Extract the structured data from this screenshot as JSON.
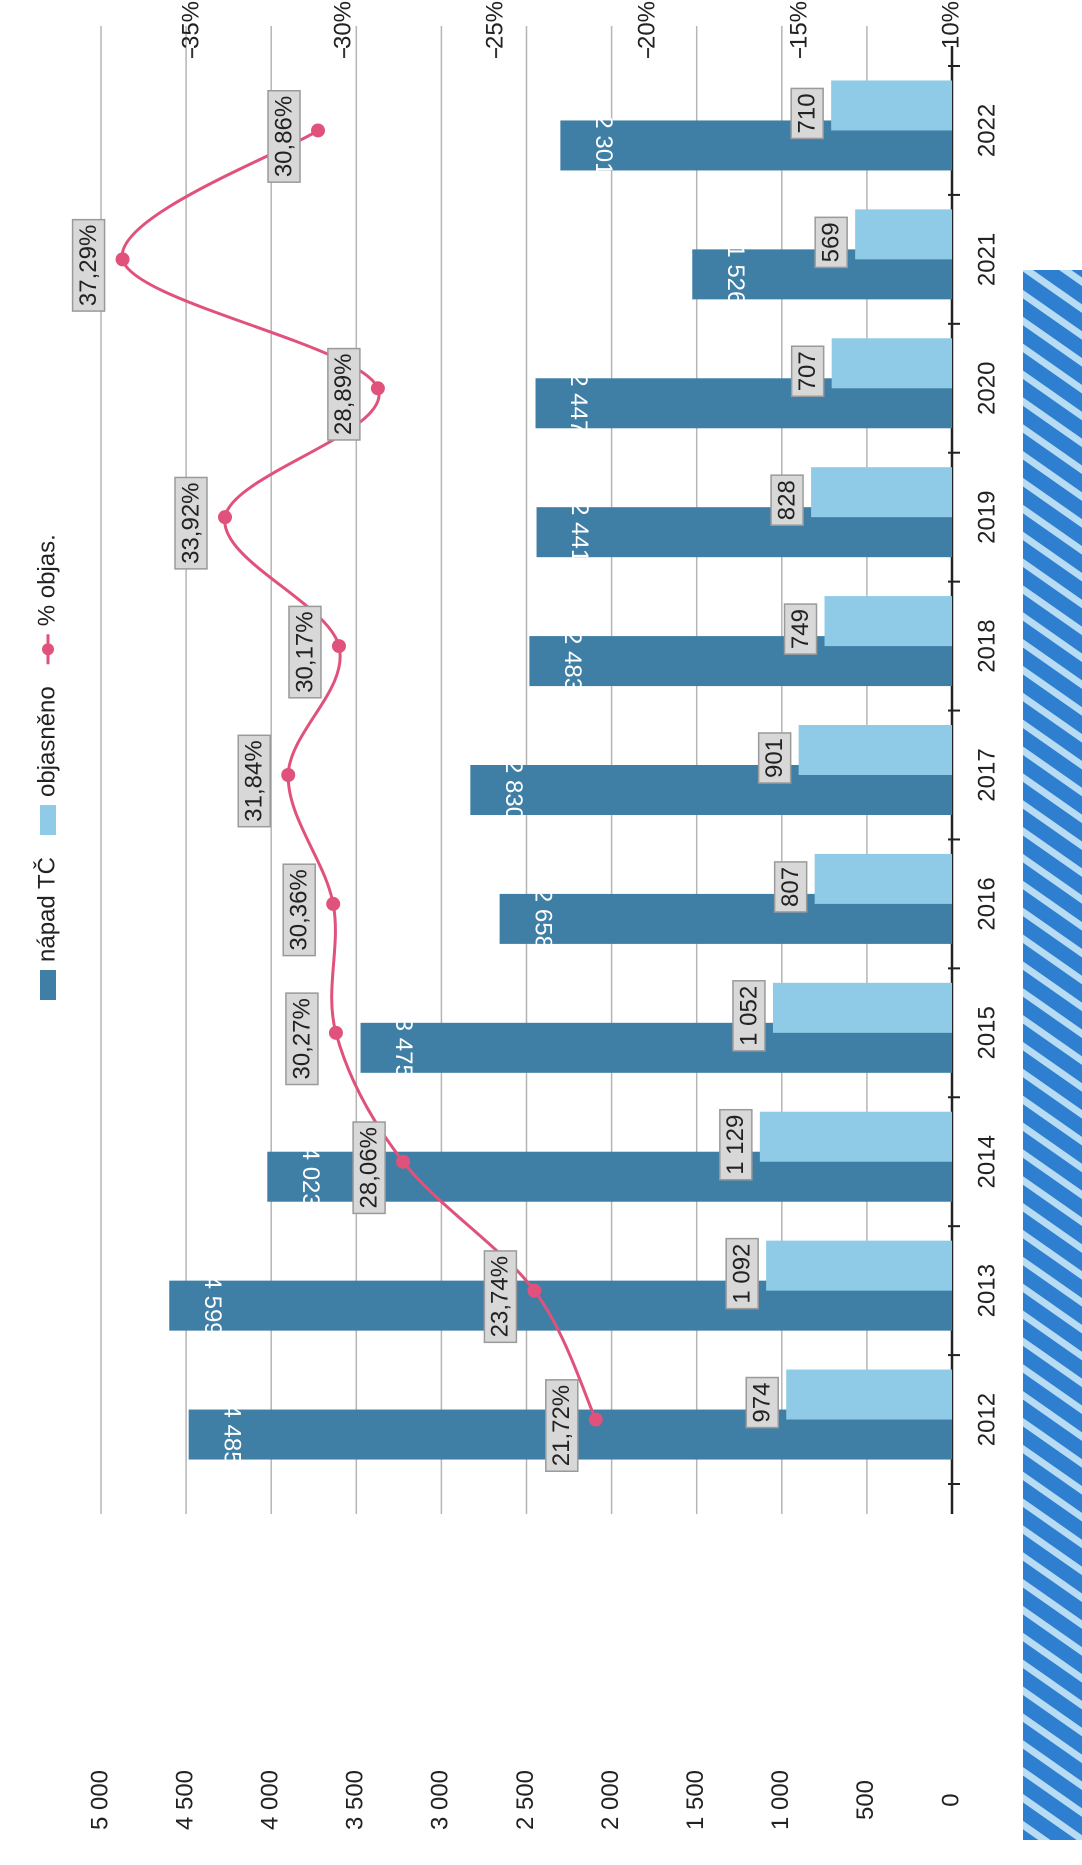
{
  "chart_data": {
    "type": "bar",
    "categories": [
      "2012",
      "2013",
      "2014",
      "2015",
      "2016",
      "2017",
      "2018",
      "2019",
      "2020",
      "2021",
      "2022"
    ],
    "series": [
      {
        "name": "nápad TČ",
        "color": "#3f7fa5",
        "type": "bar",
        "values": [
          4485,
          4599,
          4023,
          3475,
          2658,
          2830,
          2483,
          2441,
          2447,
          1526,
          2301
        ],
        "value_labels": [
          "4 485",
          "4 599",
          "4 023",
          "3 475",
          "2 658",
          "2 830",
          "2 483",
          "2 441",
          "2 447",
          "1 526",
          "2 301"
        ]
      },
      {
        "name": "objasněno",
        "color": "#8fcbe7",
        "type": "bar",
        "values": [
          974,
          1092,
          1129,
          1052,
          807,
          901,
          749,
          828,
          707,
          569,
          710
        ],
        "value_labels": [
          "974",
          "1 092",
          "1 129",
          "1 052",
          "807",
          "901",
          "749",
          "828",
          "707",
          "569",
          "710"
        ]
      },
      {
        "name": "% objas.",
        "color": "#e0517b",
        "type": "line",
        "axis": "y2",
        "values": [
          21.72,
          23.74,
          28.06,
          30.27,
          30.36,
          31.84,
          30.17,
          33.92,
          28.89,
          37.29,
          30.86
        ],
        "value_labels": [
          "21,72%",
          "23,74%",
          "28,06%",
          "30,27%",
          "30,36%",
          "31,84%",
          "30,17%",
          "33,92%",
          "28,89%",
          "37,29%",
          "30,86%"
        ]
      }
    ],
    "ylim": [
      0,
      5000
    ],
    "yticks": [
      0,
      500,
      {
        "value": 1000,
        "label": "1 000"
      },
      {
        "value": 1500,
        "label": "1 500"
      },
      {
        "value": 2000,
        "label": "2 000"
      },
      {
        "value": 2500,
        "label": "2 500"
      },
      {
        "value": 3000,
        "label": "3 000"
      },
      {
        "value": 3500,
        "label": "3 500"
      },
      {
        "value": 4000,
        "label": "4 000"
      },
      {
        "value": 4500,
        "label": "4 500"
      },
      {
        "value": 5000,
        "label": "5 000"
      }
    ],
    "y2lim": [
      10,
      38
    ],
    "y2ticks": [
      {
        "value": 10,
        "label": "10%"
      },
      {
        "value": 15,
        "label": "15%"
      },
      {
        "value": 20,
        "label": "20%"
      },
      {
        "value": 25,
        "label": "25%"
      },
      {
        "value": 30,
        "label": "30%"
      },
      {
        "value": 35,
        "label": "35%"
      }
    ],
    "grid": true,
    "legend": "top",
    "rotation": -90
  }
}
